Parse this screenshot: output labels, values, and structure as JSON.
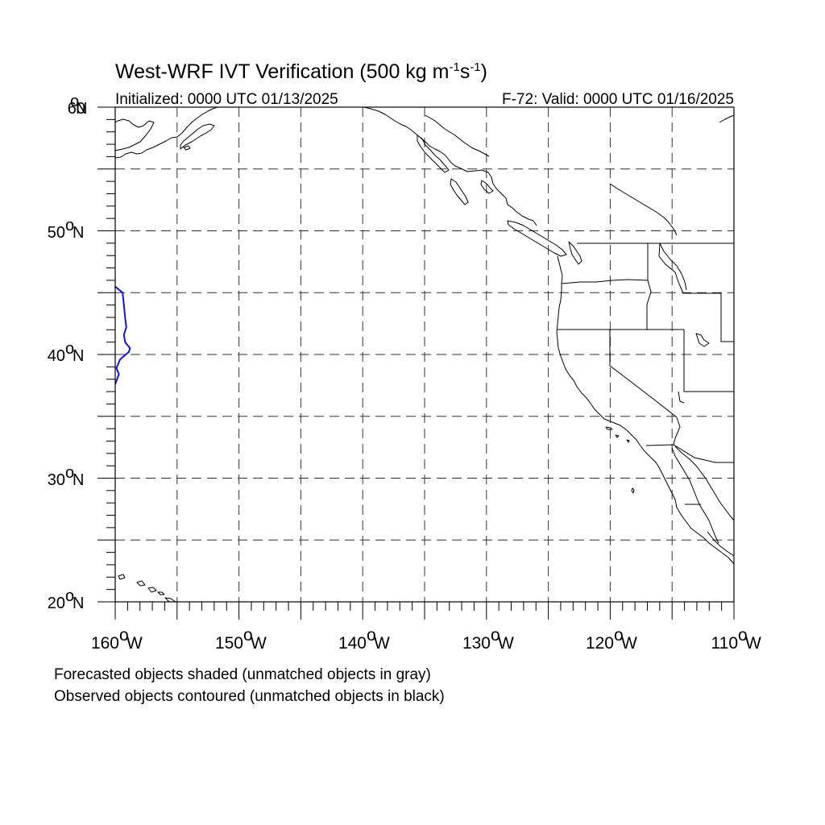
{
  "title": {
    "main": "West-WRF IVT Verification (500 kg m",
    "sup1": "-1",
    "mid": "s",
    "sup2": "-1",
    "end": ")"
  },
  "init_label": "Initialized: 0000 UTC 01/13/2025",
  "valid_label": "F-72: Valid: 0000 UTC 01/16/2025",
  "lat_labels": [
    {
      "deg": "60",
      "suffix": "N"
    },
    {
      "deg": "50",
      "suffix": "N"
    },
    {
      "deg": "40",
      "suffix": "N"
    },
    {
      "deg": "30",
      "suffix": "N"
    },
    {
      "deg": "20",
      "suffix": "N"
    }
  ],
  "lon_labels": [
    {
      "deg": "160",
      "suffix": "W"
    },
    {
      "deg": "150",
      "suffix": "W"
    },
    {
      "deg": "140",
      "suffix": "W"
    },
    {
      "deg": "130",
      "suffix": "W"
    },
    {
      "deg": "120",
      "suffix": "W"
    },
    {
      "deg": "110",
      "suffix": "W"
    }
  ],
  "degree_symbol": "o",
  "legend": {
    "forecast": "Forecasted objects shaded (unmatched objects in gray)",
    "observed": "Observed objects contoured (unmatched objects in black)"
  },
  "colors": {
    "observed_contour": "#1010e8",
    "coastline": "#000000",
    "grid": "#333333"
  },
  "map": {
    "lon_range": [
      -160,
      -110
    ],
    "lat_range": [
      20,
      60
    ],
    "grid_spacing_deg": 5
  },
  "observed_object": {
    "label": "",
    "points": [
      [
        -160.0,
        45.5
      ],
      [
        -159.4,
        45.0
      ],
      [
        -159.3,
        44.0
      ],
      [
        -159.2,
        43.0
      ],
      [
        -159.1,
        42.2
      ],
      [
        -159.3,
        41.6
      ],
      [
        -159.2,
        41.0
      ],
      [
        -158.8,
        40.5
      ],
      [
        -158.9,
        40.2
      ],
      [
        -159.6,
        39.6
      ],
      [
        -159.9,
        38.9
      ],
      [
        -159.7,
        38.4
      ],
      [
        -160.0,
        37.6
      ]
    ]
  }
}
